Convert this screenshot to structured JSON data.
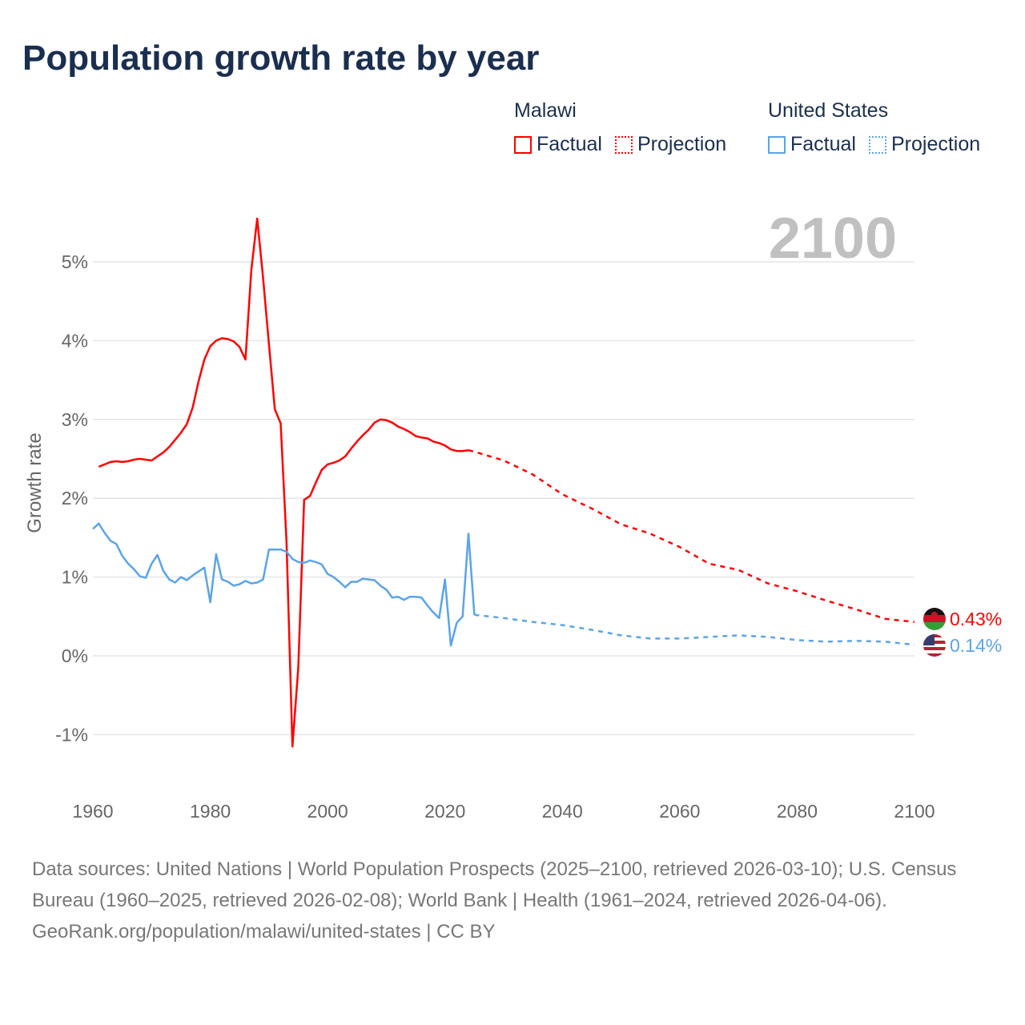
{
  "title": "Population growth rate by year",
  "legend": {
    "groups": [
      {
        "name": "Malawi",
        "factual": "Factual",
        "projection": "Projection",
        "color": "#ff0000"
      },
      {
        "name": "United States",
        "factual": "Factual",
        "projection": "Projection",
        "color": "#5ba4e8"
      }
    ]
  },
  "year_label": "2100",
  "end_labels": {
    "malawi": "0.43%",
    "us": "0.14%"
  },
  "footer": {
    "sources": "Data sources: United Nations | World Population Prospects (2025–2100, retrieved 2026-03-10); U.S. Census Bureau (1960–2025, retrieved 2026-02-08); World Bank | Health (1961–2024, retrieved 2026-04-06).",
    "link": "GeoRank.org/population/malawi/united-states | CC BY"
  },
  "chart_data": {
    "type": "line",
    "title": "Population growth rate by year",
    "xlabel": "",
    "ylabel": "Growth rate",
    "xlim": [
      1960,
      2100
    ],
    "ylim": [
      -1.5,
      5.6
    ],
    "xticks": [
      "1960",
      "1980",
      "2000",
      "2020",
      "2040",
      "2060",
      "2080",
      "2100"
    ],
    "yticks": [
      "-1%",
      "0%",
      "1%",
      "2%",
      "3%",
      "4%",
      "5%"
    ],
    "ytick_values": [
      -1,
      0,
      1,
      2,
      3,
      4,
      5
    ],
    "grid": true,
    "series": [
      {
        "name": "Malawi Factual",
        "color": "#ff0000",
        "style": "solid",
        "x": [
          1961,
          1962,
          1963,
          1964,
          1965,
          1966,
          1967,
          1968,
          1969,
          1970,
          1971,
          1972,
          1973,
          1974,
          1975,
          1976,
          1977,
          1978,
          1979,
          1980,
          1981,
          1982,
          1983,
          1984,
          1985,
          1986,
          1987,
          1988,
          1989,
          1990,
          1991,
          1992,
          1993,
          1994,
          1995,
          1996,
          1997,
          1998,
          1999,
          2000,
          2001,
          2002,
          2003,
          2004,
          2005,
          2006,
          2007,
          2008,
          2009,
          2010,
          2011,
          2012,
          2013,
          2014,
          2015,
          2016,
          2017,
          2018,
          2019,
          2020,
          2021,
          2022,
          2023,
          2024
        ],
        "y": [
          2.4,
          2.43,
          2.46,
          2.47,
          2.46,
          2.47,
          2.49,
          2.5,
          2.49,
          2.48,
          2.53,
          2.58,
          2.65,
          2.74,
          2.83,
          2.94,
          3.15,
          3.48,
          3.76,
          3.93,
          4.0,
          4.03,
          4.02,
          3.99,
          3.92,
          3.76,
          4.9,
          5.55,
          4.8,
          3.95,
          3.13,
          2.95,
          1.45,
          -1.15,
          -0.15,
          1.98,
          2.03,
          2.2,
          2.36,
          2.43,
          2.45,
          2.48,
          2.53,
          2.63,
          2.72,
          2.8,
          2.87,
          2.96,
          3.0,
          2.99,
          2.96,
          2.91,
          2.88,
          2.84,
          2.79,
          2.77,
          2.76,
          2.72,
          2.7,
          2.67,
          2.62,
          2.6,
          2.6,
          2.61
        ]
      },
      {
        "name": "Malawi Projection",
        "color": "#ff0000",
        "style": "dotted",
        "x": [
          2024,
          2025,
          2030,
          2035,
          2040,
          2045,
          2050,
          2055,
          2060,
          2065,
          2070,
          2075,
          2080,
          2085,
          2090,
          2095,
          2100
        ],
        "y": [
          2.61,
          2.59,
          2.48,
          2.3,
          2.05,
          1.87,
          1.67,
          1.55,
          1.38,
          1.17,
          1.09,
          0.92,
          0.82,
          0.7,
          0.59,
          0.47,
          0.43
        ]
      },
      {
        "name": "United States Factual",
        "color": "#5ba4e8",
        "style": "solid",
        "x": [
          1960,
          1961,
          1962,
          1963,
          1964,
          1965,
          1966,
          1967,
          1968,
          1969,
          1970,
          1971,
          1972,
          1973,
          1974,
          1975,
          1976,
          1977,
          1978,
          1979,
          1980,
          1981,
          1982,
          1983,
          1984,
          1985,
          1986,
          1987,
          1988,
          1989,
          1990,
          1991,
          1992,
          1993,
          1994,
          1995,
          1996,
          1997,
          1998,
          1999,
          2000,
          2001,
          2002,
          2003,
          2004,
          2005,
          2006,
          2007,
          2008,
          2009,
          2010,
          2011,
          2012,
          2013,
          2014,
          2015,
          2016,
          2017,
          2018,
          2019,
          2020,
          2021,
          2022,
          2023,
          2024,
          2025
        ],
        "y": [
          1.61,
          1.68,
          1.56,
          1.46,
          1.42,
          1.27,
          1.17,
          1.1,
          1.01,
          0.99,
          1.17,
          1.28,
          1.08,
          0.97,
          0.93,
          1.0,
          0.96,
          1.02,
          1.07,
          1.12,
          0.68,
          1.29,
          0.97,
          0.94,
          0.89,
          0.91,
          0.95,
          0.92,
          0.93,
          0.97,
          1.35,
          1.35,
          1.35,
          1.32,
          1.23,
          1.19,
          1.18,
          1.21,
          1.19,
          1.16,
          1.04,
          1.0,
          0.94,
          0.87,
          0.94,
          0.94,
          0.98,
          0.97,
          0.96,
          0.89,
          0.84,
          0.74,
          0.75,
          0.71,
          0.75,
          0.75,
          0.74,
          0.64,
          0.55,
          0.48,
          0.97,
          0.13,
          0.42,
          0.5,
          1.55,
          0.52
        ]
      },
      {
        "name": "United States Projection",
        "color": "#5ba4e8",
        "style": "dotted",
        "x": [
          2025,
          2030,
          2035,
          2040,
          2045,
          2050,
          2055,
          2060,
          2065,
          2070,
          2075,
          2080,
          2085,
          2090,
          2095,
          2100
        ],
        "y": [
          0.52,
          0.48,
          0.43,
          0.39,
          0.33,
          0.26,
          0.22,
          0.22,
          0.24,
          0.26,
          0.24,
          0.2,
          0.18,
          0.19,
          0.18,
          0.14
        ]
      }
    ]
  }
}
